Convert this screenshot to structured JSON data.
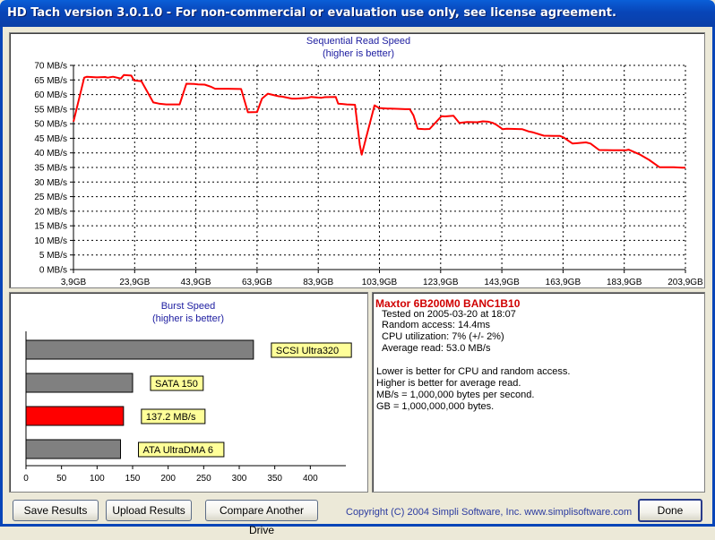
{
  "window": {
    "title": "HD Tach version 3.0.1.0  - For non-commercial or evaluation use only, see license agreement."
  },
  "sequential": {
    "title": "Sequential Read Speed",
    "subtitle": "(higher is better)"
  },
  "burst": {
    "title": "Burst Speed",
    "subtitle": "(higher is better)"
  },
  "chart_data": [
    {
      "type": "line",
      "title": "Sequential Read Speed",
      "subtitle": "(higher is better)",
      "ylim": [
        0,
        70
      ],
      "xlim": [
        3.9,
        203.9
      ],
      "y_ticks": [
        0,
        5,
        10,
        15,
        20,
        25,
        30,
        35,
        40,
        45,
        50,
        55,
        60,
        65,
        70
      ],
      "y_tick_labels": [
        "0 MB/s",
        "5 MB/s",
        "10 MB/s",
        "15 MB/s",
        "20 MB/s",
        "25 MB/s",
        "30 MB/s",
        "35 MB/s",
        "40 MB/s",
        "45 MB/s",
        "50 MB/s",
        "55 MB/s",
        "60 MB/s",
        "65 MB/s",
        "70 MB/s"
      ],
      "x_ticks": [
        3.9,
        23.9,
        43.9,
        63.9,
        83.9,
        103.9,
        123.9,
        143.9,
        163.9,
        183.9,
        203.9
      ],
      "x_tick_labels": [
        "3,9GB",
        "23,9GB",
        "43,9GB",
        "63,9GB",
        "83,9GB",
        "103,9GB",
        "123,9GB",
        "143,9GB",
        "163,9GB",
        "183,9GB",
        "203,9GB"
      ],
      "grid": true,
      "series_color": "#ff0000",
      "series": [
        {
          "x": [
            3.9,
            7.4,
            8.3,
            11.5,
            14.2,
            15.1,
            16.8,
            19.4,
            20.4,
            22.8,
            23.7,
            26.1,
            30.0,
            31.8,
            34.2,
            38.6,
            39.8,
            40.8,
            43.3,
            44.6,
            46.8,
            49.0,
            50.2,
            54.5,
            58.7,
            60.9,
            63.9,
            65.5,
            67.4,
            71.0,
            72.1,
            75.3,
            76.6,
            80.5,
            81.6,
            84.9,
            86.0,
            89.6,
            90.4,
            93.2,
            95.9,
            97.5,
            98.1,
            102.3,
            103.8,
            106.5,
            107.5,
            112.3,
            113.8,
            115.0,
            116.4,
            118.7,
            120.3,
            124.2,
            125.3,
            128.1,
            130.0,
            132.6,
            135.9,
            137.7,
            139.4,
            140.9,
            142.0,
            144.2,
            145.5,
            150.6,
            152.8,
            154.2,
            157.6,
            160.8,
            162.9,
            164.1,
            167.0,
            168.1,
            171.4,
            172.9,
            175.7,
            180.2,
            184.4,
            185.3,
            189.1,
            192.0,
            195.4,
            200.1,
            202.9,
            203.9
          ],
          "y": [
            50.7,
            65.8,
            66.1,
            65.9,
            66.0,
            65.8,
            66.1,
            65.5,
            66.7,
            66.5,
            64.8,
            64.6,
            57.3,
            56.9,
            56.6,
            56.6,
            60.5,
            63.7,
            63.6,
            63.5,
            63.4,
            62.6,
            62.0,
            62.0,
            61.9,
            53.9,
            54.0,
            58.6,
            60.3,
            59.4,
            59.3,
            58.6,
            58.6,
            58.9,
            59.2,
            58.9,
            59.1,
            59.2,
            56.9,
            56.6,
            56.5,
            42.7,
            39.4,
            56.3,
            55.4,
            55.2,
            55.2,
            55.0,
            55.0,
            52.9,
            48.3,
            48.1,
            48.2,
            52.6,
            52.5,
            52.7,
            50.3,
            50.6,
            50.5,
            50.8,
            50.7,
            50.3,
            49.7,
            48.1,
            48.3,
            48.1,
            47.3,
            47.0,
            45.9,
            45.8,
            45.8,
            45.3,
            43.2,
            43.3,
            43.6,
            43.2,
            41.0,
            40.9,
            40.9,
            41.1,
            39.4,
            37.6,
            35.1,
            35.1,
            34.9,
            34.9
          ]
        }
      ]
    },
    {
      "type": "bar",
      "orientation": "horizontal",
      "title": "Burst Speed",
      "subtitle": "(higher is better)",
      "xlim": [
        0,
        450
      ],
      "x_ticks": [
        0,
        50,
        100,
        150,
        200,
        250,
        300,
        350,
        400
      ],
      "x_tick_labels": [
        "0",
        "50",
        "100",
        "150",
        "200",
        "250",
        "300",
        "350",
        "400"
      ],
      "categories": [
        "SCSI Ultra320",
        "SATA 150",
        "137.2 MB/s",
        "ATA UltraDMA 6"
      ],
      "values": [
        320,
        150,
        137.2,
        133
      ],
      "colors": [
        "#808080",
        "#808080",
        "#ff0000",
        "#808080"
      ],
      "label_bg": "#ffff99"
    }
  ],
  "info": {
    "drive": "Maxtor 6B200M0 BANC1B10",
    "tested": "Tested on 2005-03-20 at 18:07",
    "random_access": "Random access: 14.4ms",
    "cpu": "CPU utilization: 7% (+/- 2%)",
    "average_read": "Average read: 53.0 MB/s",
    "notes": [
      "Lower is better for CPU and random access.",
      "Higher is better for average read.",
      "MB/s = 1,000,000 bytes per second.",
      "GB = 1,000,000,000 bytes."
    ]
  },
  "buttons": {
    "save": "Save Results",
    "upload": "Upload Results",
    "compare": "Compare Another Drive",
    "done": "Done"
  },
  "footer": {
    "copyright": "Copyright (C) 2004 Simpli Software, Inc. www.simplisoftware.com"
  }
}
